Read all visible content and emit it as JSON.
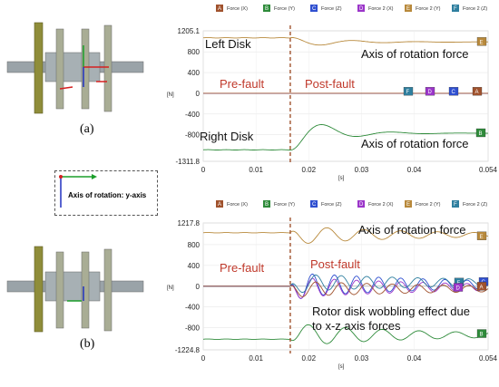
{
  "captions": {
    "a": "(a)",
    "b": "(b)"
  },
  "axis_box": {
    "label": "Axis of rotation: y-axis"
  },
  "colors": {
    "brown": "#a0522d",
    "green": "#2e8b3a",
    "blue": "#2f4fd0",
    "purple": "#9b35c9",
    "gold": "#b8893b",
    "teal": "#2f7f9f",
    "fault_line": "#a0522d",
    "annotation_red": "#c0392b"
  },
  "chart_data": [
    {
      "type": "line",
      "title": "",
      "xlabel": "[s]",
      "ylabel": "[N]",
      "xlim": [
        0,
        0.054
      ],
      "ylim": [
        -1311.8,
        1205.1
      ],
      "x_ticks": [
        "0",
        "0.01",
        "0.02",
        "0.03",
        "0.04",
        "0.054"
      ],
      "y_ticks": [
        "1205.1",
        "800",
        "400",
        "0",
        "-400",
        "-800",
        "-1311.8"
      ],
      "fault_time": 0.0165,
      "legend": [
        {
          "tag": "A",
          "label": "Force (X)",
          "color": "#a0522d"
        },
        {
          "tag": "B",
          "label": "Force (Y)",
          "color": "#2e8b3a"
        },
        {
          "tag": "C",
          "label": "Force (Z)",
          "color": "#2f4fd0"
        },
        {
          "tag": "D",
          "label": "Force 2 (X)",
          "color": "#9b35c9"
        },
        {
          "tag": "E",
          "label": "Force 2 (Y)",
          "color": "#b8893b"
        },
        {
          "tag": "F",
          "label": "Force 2 (Z)",
          "color": "#2f7f9f"
        }
      ],
      "annotations": {
        "left_disk": "Left Disk",
        "right_disk": "Right Disk",
        "axis_force_top": "Axis of rotation force",
        "axis_force_bottom": "Axis of rotation force",
        "pre_fault": "Pre-fault",
        "post_fault": "Post-fault"
      },
      "series": [
        {
          "tag": "E",
          "pre": 1070,
          "post_final": 990,
          "amp": 120,
          "decay": 120,
          "omega": 520
        },
        {
          "tag": "B",
          "pre": -1090,
          "post_final": -770,
          "amp": -420,
          "decay": 150,
          "omega": 480
        },
        {
          "tag": "F",
          "pre": 0,
          "post_final": 0,
          "amp": 0,
          "decay": 1,
          "omega": 1
        },
        {
          "tag": "D",
          "pre": 0,
          "post_final": 0,
          "amp": 0,
          "decay": 1,
          "omega": 1
        },
        {
          "tag": "C",
          "pre": 0,
          "post_final": 0,
          "amp": 0,
          "decay": 1,
          "omega": 1
        },
        {
          "tag": "A",
          "pre": 0,
          "post_final": 0,
          "amp": 0,
          "decay": 1,
          "omega": 1
        }
      ],
      "end_markers": [
        {
          "tag": "E",
          "value": 990
        },
        {
          "tag": "F",
          "value": 30
        },
        {
          "tag": "D",
          "value": 30
        },
        {
          "tag": "C",
          "value": 30
        },
        {
          "tag": "A",
          "value": 30
        },
        {
          "tag": "B",
          "value": -770
        }
      ]
    },
    {
      "type": "line",
      "title": "",
      "xlabel": "[s]",
      "ylabel": "[N]",
      "xlim": [
        0,
        0.054
      ],
      "ylim": [
        -1224.8,
        1217.8
      ],
      "x_ticks": [
        "0",
        "0.01",
        "0.02",
        "0.03",
        "0.04",
        "0.054"
      ],
      "y_ticks": [
        "1217.8",
        "800",
        "400",
        "0",
        "-400",
        "-800",
        "-1224.8"
      ],
      "fault_time": 0.0165,
      "legend": [
        {
          "tag": "A",
          "label": "Force (X)",
          "color": "#a0522d"
        },
        {
          "tag": "B",
          "label": "Force (Y)",
          "color": "#2e8b3a"
        },
        {
          "tag": "C",
          "label": "Force (Z)",
          "color": "#2f4fd0"
        },
        {
          "tag": "D",
          "label": "Force 2 (X)",
          "color": "#9b35c9"
        },
        {
          "tag": "E",
          "label": "Force 2 (Y)",
          "color": "#b8893b"
        },
        {
          "tag": "F",
          "label": "Force 2 (Z)",
          "color": "#2f7f9f"
        }
      ],
      "annotations": {
        "axis_force": "Axis of rotation force",
        "pre_fault": "Pre-fault",
        "post_fault": "Post-fault",
        "wobble": "Rotor disk wobbling effect due to x-z axis forces"
      },
      "series": [
        {
          "tag": "E",
          "pre": 1030,
          "post_final": 990,
          "amp": 180,
          "decay": 40,
          "omega": 900
        },
        {
          "tag": "B",
          "pre": -1020,
          "post_final": -940,
          "amp": -220,
          "decay": 40,
          "omega": 900
        },
        {
          "tag": "C",
          "pre": 0,
          "post_final": 30,
          "amp": 240,
          "decay": 30,
          "omega": 1500
        },
        {
          "tag": "D",
          "pre": 0,
          "post_final": -20,
          "amp": 200,
          "decay": 30,
          "omega": 1500
        },
        {
          "tag": "F",
          "pre": 0,
          "post_final": 70,
          "amp": 170,
          "decay": 25,
          "omega": 1300
        },
        {
          "tag": "A",
          "pre": 0,
          "post_final": -50,
          "amp": 150,
          "decay": 25,
          "omega": 1300
        }
      ],
      "end_markers": [
        {
          "tag": "E",
          "value": 960
        },
        {
          "tag": "F",
          "value": 70
        },
        {
          "tag": "C",
          "value": 80
        },
        {
          "tag": "D",
          "value": -30
        },
        {
          "tag": "A",
          "value": -10
        },
        {
          "tag": "B",
          "value": -920
        }
      ]
    }
  ]
}
